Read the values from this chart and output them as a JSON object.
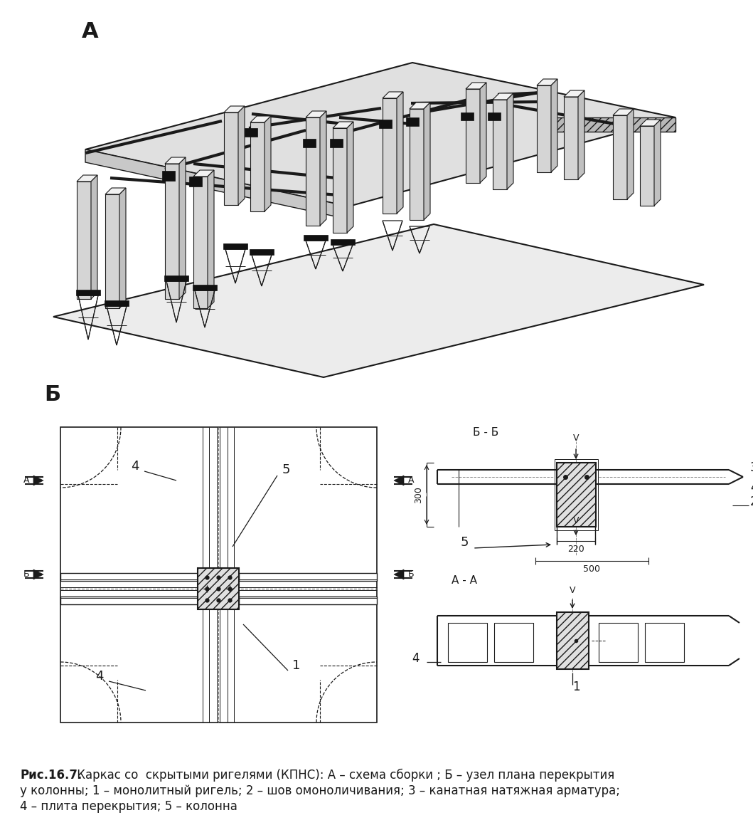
{
  "title_A": "А",
  "title_B": "Б",
  "section_BB": "Б - Б",
  "section_AA": "А - А",
  "caption_bold": "Рис.16.7.",
  "caption_rest": " Каркас со  скрытыми ригелями (КПНС): А – схема сборки ; Б – узел плана перекрытия",
  "caption_line2": "у колонны; 1 – монолитный ригель; 2 – шов омоноличивания; 3 – канатная натяжная арматура;",
  "caption_line3": "4 – плита перекрытия; 5 – колонна",
  "lc": "#1a1a1a",
  "dark": "#111111",
  "gray1": "#e8e8e8",
  "gray2": "#d0d0d0"
}
